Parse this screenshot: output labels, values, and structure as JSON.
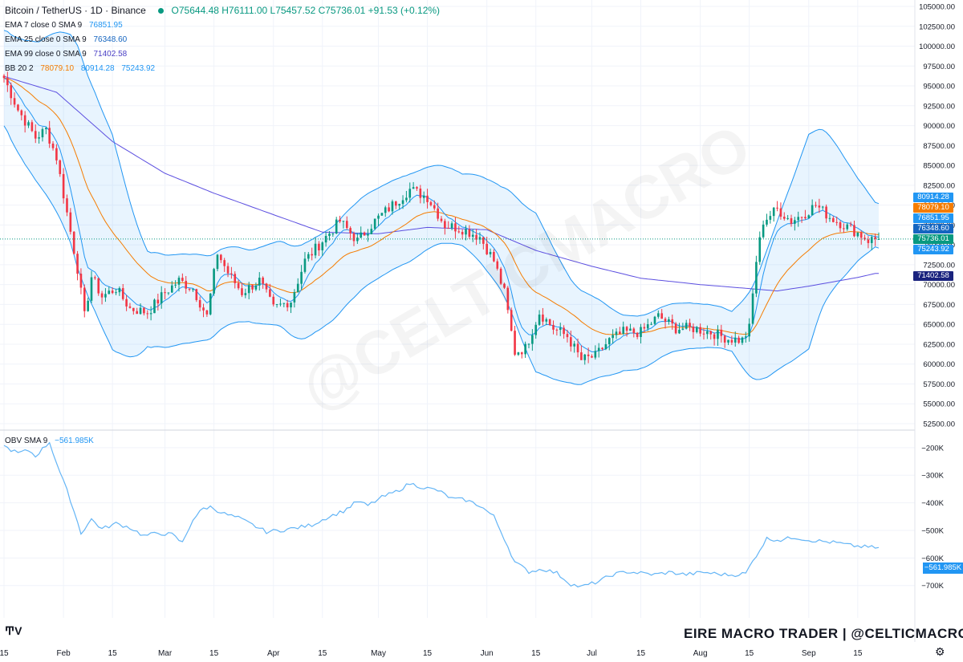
{
  "header": {
    "symbol": "Bitcoin / TetherUS · 1D · Binance",
    "ohlc": "O75644.48 H76111.00 L75457.52 C75736.01 +91.53 (+0.12%)"
  },
  "indicators": [
    {
      "label": "EMA 7 close 0 SMA 9",
      "values": [
        "76851.95"
      ],
      "colors": [
        "#2196f3"
      ]
    },
    {
      "label": "EMA 25 close 0 SMA 9",
      "values": [
        "76348.60"
      ],
      "colors": [
        "#1565c0"
      ]
    },
    {
      "label": "EMA 99 close 0 SMA 9",
      "values": [
        "71402.58"
      ],
      "colors": [
        "#4a3fc5"
      ]
    },
    {
      "label": "BB 20 2",
      "values": [
        "78079.10",
        "80914.28",
        "75243.92"
      ],
      "colors": [
        "#f57c00",
        "#2196f3",
        "#2196f3"
      ]
    }
  ],
  "obv": {
    "label": "OBV SMA 9",
    "value": "−561.985K"
  },
  "price_tags": [
    {
      "text": "80914.28",
      "color": "#2196f3",
      "value": 80914.28
    },
    {
      "text": "78079.10",
      "color": "#f57c00",
      "value": 78079.1
    },
    {
      "text": "76851.95",
      "color": "#2196f3",
      "value": 76851.95
    },
    {
      "text": "76348.60",
      "color": "#1565c0",
      "value": 76348.6
    },
    {
      "text": "75736.01",
      "color": "#089981",
      "value": 75736.01
    },
    {
      "text": "75243.92",
      "color": "#2196f3",
      "value": 75243.92
    },
    {
      "text": "71402.58",
      "color": "#1a237e",
      "value": 71402.58
    }
  ],
  "colors": {
    "up": "#089981",
    "down": "#f23645",
    "bb": "#2196f3",
    "ema25": "#f57c00",
    "ema99": "#5c4fe0",
    "ema7": "#2196f3",
    "bb_fill": "rgba(33,150,243,0.10)",
    "obv": "#64b5f6"
  },
  "watermark": "@CELTICMACRO",
  "brand": "EIRE MACRO TRADER | @CELTICMACRO",
  "chart_data": {
    "type": "candlestick",
    "price_axis": {
      "ylim": [
        52500,
        105000
      ],
      "ticks": [
        "105000.00",
        "102500.00",
        "100000.00",
        "97500.00",
        "95000.00",
        "92500.00",
        "90000.00",
        "87500.00",
        "85000.00",
        "82500.00",
        "80000.00",
        "77500.00",
        "75000.00",
        "72500.00",
        "70000.00",
        "67500.00",
        "65000.00",
        "62500.00",
        "60000.00",
        "57500.00",
        "55000.00",
        "52500.00"
      ]
    },
    "obv_axis": {
      "ylim": [
        -730,
        -180
      ],
      "ticks": [
        {
          "label": "−200K",
          "v": -200
        },
        {
          "label": "−300K",
          "v": -300
        },
        {
          "label": "−400K",
          "v": -400
        },
        {
          "label": "−500K",
          "v": -500
        },
        {
          "label": "−600K",
          "v": -600
        },
        {
          "label": "−700K",
          "v": -700
        }
      ]
    },
    "x_axis": {
      "start": "2024-01-15",
      "end": "2024-09-21",
      "ticks": [
        {
          "label": "15",
          "date": "2024-01-15"
        },
        {
          "label": "Feb",
          "date": "2024-02-01"
        },
        {
          "label": "15",
          "date": "2024-02-15"
        },
        {
          "label": "Mar",
          "date": "2024-03-01"
        },
        {
          "label": "15",
          "date": "2024-03-15"
        },
        {
          "label": "Apr",
          "date": "2024-04-01"
        },
        {
          "label": "15",
          "date": "2024-04-15"
        },
        {
          "label": "May",
          "date": "2024-05-01"
        },
        {
          "label": "15",
          "date": "2024-05-15"
        },
        {
          "label": "Jun",
          "date": "2024-06-01"
        },
        {
          "label": "15",
          "date": "2024-06-15"
        },
        {
          "label": "Jul",
          "date": "2024-07-01"
        },
        {
          "label": "15",
          "date": "2024-07-15"
        },
        {
          "label": "Aug",
          "date": "2024-08-01"
        },
        {
          "label": "15",
          "date": "2024-08-15"
        },
        {
          "label": "Sep",
          "date": "2024-09-01"
        },
        {
          "label": "15",
          "date": "2024-09-15"
        }
      ]
    },
    "close_keypoints": [
      [
        "2024-01-15",
        96000
      ],
      [
        "2024-01-19",
        92000
      ],
      [
        "2024-01-24",
        88500
      ],
      [
        "2024-01-27",
        89500
      ],
      [
        "2024-01-30",
        86000
      ],
      [
        "2024-02-02",
        79000
      ],
      [
        "2024-02-05",
        72000
      ],
      [
        "2024-02-07",
        66000
      ],
      [
        "2024-02-09",
        71000
      ],
      [
        "2024-02-12",
        68500
      ],
      [
        "2024-02-16",
        69500
      ],
      [
        "2024-02-20",
        67000
      ],
      [
        "2024-02-25",
        66500
      ],
      [
        "2024-03-01",
        69000
      ],
      [
        "2024-03-05",
        70500
      ],
      [
        "2024-03-09",
        69500
      ],
      [
        "2024-03-13",
        66000
      ],
      [
        "2024-03-16",
        74000
      ],
      [
        "2024-03-19",
        71500
      ],
      [
        "2024-03-23",
        69000
      ],
      [
        "2024-03-28",
        70500
      ],
      [
        "2024-04-01",
        67000
      ],
      [
        "2024-04-06",
        68000
      ],
      [
        "2024-04-10",
        73000
      ],
      [
        "2024-04-15",
        75500
      ],
      [
        "2024-04-20",
        78000
      ],
      [
        "2024-04-25",
        75500
      ],
      [
        "2024-04-30",
        78000
      ],
      [
        "2024-05-05",
        80000
      ],
      [
        "2024-05-10",
        82000
      ],
      [
        "2024-05-15",
        81000
      ],
      [
        "2024-05-20",
        77500
      ],
      [
        "2024-05-25",
        77000
      ],
      [
        "2024-05-30",
        76000
      ],
      [
        "2024-06-03",
        73000
      ],
      [
        "2024-06-06",
        69000
      ],
      [
        "2024-06-09",
        61500
      ],
      [
        "2024-06-12",
        62000
      ],
      [
        "2024-06-16",
        66500
      ],
      [
        "2024-06-20",
        64500
      ],
      [
        "2024-06-24",
        63500
      ],
      [
        "2024-06-28",
        60500
      ],
      [
        "2024-07-02",
        61000
      ],
      [
        "2024-07-06",
        63000
      ],
      [
        "2024-07-10",
        64000
      ],
      [
        "2024-07-15",
        64000
      ],
      [
        "2024-07-20",
        66000
      ],
      [
        "2024-07-25",
        64500
      ],
      [
        "2024-07-30",
        64500
      ],
      [
        "2024-08-04",
        64000
      ],
      [
        "2024-08-09",
        63200
      ],
      [
        "2024-08-13",
        63000
      ],
      [
        "2024-08-15",
        64500
      ],
      [
        "2024-08-17",
        73000
      ],
      [
        "2024-08-19",
        78000
      ],
      [
        "2024-08-23",
        79500
      ],
      [
        "2024-08-27",
        78000
      ],
      [
        "2024-08-31",
        79000
      ],
      [
        "2024-09-03",
        80000
      ],
      [
        "2024-09-07",
        78500
      ],
      [
        "2024-09-11",
        77500
      ],
      [
        "2024-09-15",
        76500
      ],
      [
        "2024-09-18",
        75600
      ],
      [
        "2024-09-20",
        75736
      ]
    ],
    "ema99_keypoints": [
      [
        "2024-01-15",
        96200
      ],
      [
        "2024-01-30",
        94200
      ],
      [
        "2024-02-15",
        88000
      ],
      [
        "2024-03-01",
        84000
      ],
      [
        "2024-03-15",
        81500
      ],
      [
        "2024-04-01",
        78800
      ],
      [
        "2024-04-15",
        76600
      ],
      [
        "2024-05-01",
        76400
      ],
      [
        "2024-05-15",
        77200
      ],
      [
        "2024-06-01",
        76900
      ],
      [
        "2024-06-15",
        74300
      ],
      [
        "2024-07-01",
        72300
      ],
      [
        "2024-07-15",
        70800
      ],
      [
        "2024-08-01",
        70000
      ],
      [
        "2024-08-15",
        69500
      ],
      [
        "2024-08-23",
        69200
      ],
      [
        "2024-09-01",
        69800
      ],
      [
        "2024-09-15",
        70900
      ],
      [
        "2024-09-20",
        71402.58
      ]
    ],
    "obv_keypoints": [
      [
        "2024-01-15",
        -195
      ],
      [
        "2024-01-19",
        -220
      ],
      [
        "2024-01-22",
        -210
      ],
      [
        "2024-01-24",
        -230
      ],
      [
        "2024-01-28",
        -180
      ],
      [
        "2024-01-31",
        -290
      ],
      [
        "2024-02-03",
        -390
      ],
      [
        "2024-02-06",
        -510
      ],
      [
        "2024-02-09",
        -460
      ],
      [
        "2024-02-12",
        -495
      ],
      [
        "2024-02-16",
        -475
      ],
      [
        "2024-02-20",
        -490
      ],
      [
        "2024-02-24",
        -520
      ],
      [
        "2024-02-28",
        -510
      ],
      [
        "2024-03-03",
        -515
      ],
      [
        "2024-03-06",
        -545
      ],
      [
        "2024-03-09",
        -460
      ],
      [
        "2024-03-12",
        -420
      ],
      [
        "2024-03-14",
        -415
      ],
      [
        "2024-03-18",
        -440
      ],
      [
        "2024-03-22",
        -455
      ],
      [
        "2024-03-26",
        -480
      ],
      [
        "2024-03-30",
        -505
      ],
      [
        "2024-04-03",
        -500
      ],
      [
        "2024-04-08",
        -490
      ],
      [
        "2024-04-12",
        -480
      ],
      [
        "2024-04-16",
        -455
      ],
      [
        "2024-04-21",
        -430
      ],
      [
        "2024-04-25",
        -395
      ],
      [
        "2024-04-28",
        -410
      ],
      [
        "2024-05-02",
        -380
      ],
      [
        "2024-05-06",
        -360
      ],
      [
        "2024-05-10",
        -330
      ],
      [
        "2024-05-14",
        -345
      ],
      [
        "2024-05-18",
        -355
      ],
      [
        "2024-05-22",
        -385
      ],
      [
        "2024-05-26",
        -390
      ],
      [
        "2024-05-30",
        -410
      ],
      [
        "2024-06-03",
        -450
      ],
      [
        "2024-06-06",
        -530
      ],
      [
        "2024-06-09",
        -615
      ],
      [
        "2024-06-13",
        -650
      ],
      [
        "2024-06-17",
        -640
      ],
      [
        "2024-06-21",
        -655
      ],
      [
        "2024-06-25",
        -695
      ],
      [
        "2024-06-28",
        -705
      ],
      [
        "2024-07-03",
        -685
      ],
      [
        "2024-07-07",
        -660
      ],
      [
        "2024-07-11",
        -650
      ],
      [
        "2024-07-15",
        -655
      ],
      [
        "2024-07-19",
        -660
      ],
      [
        "2024-07-23",
        -652
      ],
      [
        "2024-07-28",
        -660
      ],
      [
        "2024-08-02",
        -652
      ],
      [
        "2024-08-06",
        -658
      ],
      [
        "2024-08-10",
        -662
      ],
      [
        "2024-08-14",
        -656
      ],
      [
        "2024-08-17",
        -590
      ],
      [
        "2024-08-20",
        -530
      ],
      [
        "2024-08-24",
        -535
      ],
      [
        "2024-08-28",
        -525
      ],
      [
        "2024-09-01",
        -535
      ],
      [
        "2024-09-05",
        -540
      ],
      [
        "2024-09-09",
        -545
      ],
      [
        "2024-09-13",
        -555
      ],
      [
        "2024-09-17",
        -560
      ],
      [
        "2024-09-20",
        -561.985
      ]
    ],
    "bb_width_keypoints": [
      [
        "2024-01-15",
        6000
      ],
      [
        "2024-01-25",
        9000
      ],
      [
        "2024-02-05",
        14000
      ],
      [
        "2024-02-15",
        13500
      ],
      [
        "2024-02-25",
        6000
      ],
      [
        "2024-03-10",
        5500
      ],
      [
        "2024-03-25",
        4500
      ],
      [
        "2024-04-10",
        6000
      ],
      [
        "2024-04-25",
        5800
      ],
      [
        "2024-05-10",
        5500
      ],
      [
        "2024-05-25",
        4500
      ],
      [
        "2024-06-05",
        6500
      ],
      [
        "2024-06-15",
        10000
      ],
      [
        "2024-06-25",
        6500
      ],
      [
        "2024-07-10",
        3500
      ],
      [
        "2024-07-25",
        3000
      ],
      [
        "2024-08-10",
        2500
      ],
      [
        "2024-08-20",
        8000
      ],
      [
        "2024-09-01",
        13500
      ],
      [
        "2024-09-15",
        5200
      ],
      [
        "2024-09-20",
        2800
      ]
    ]
  }
}
